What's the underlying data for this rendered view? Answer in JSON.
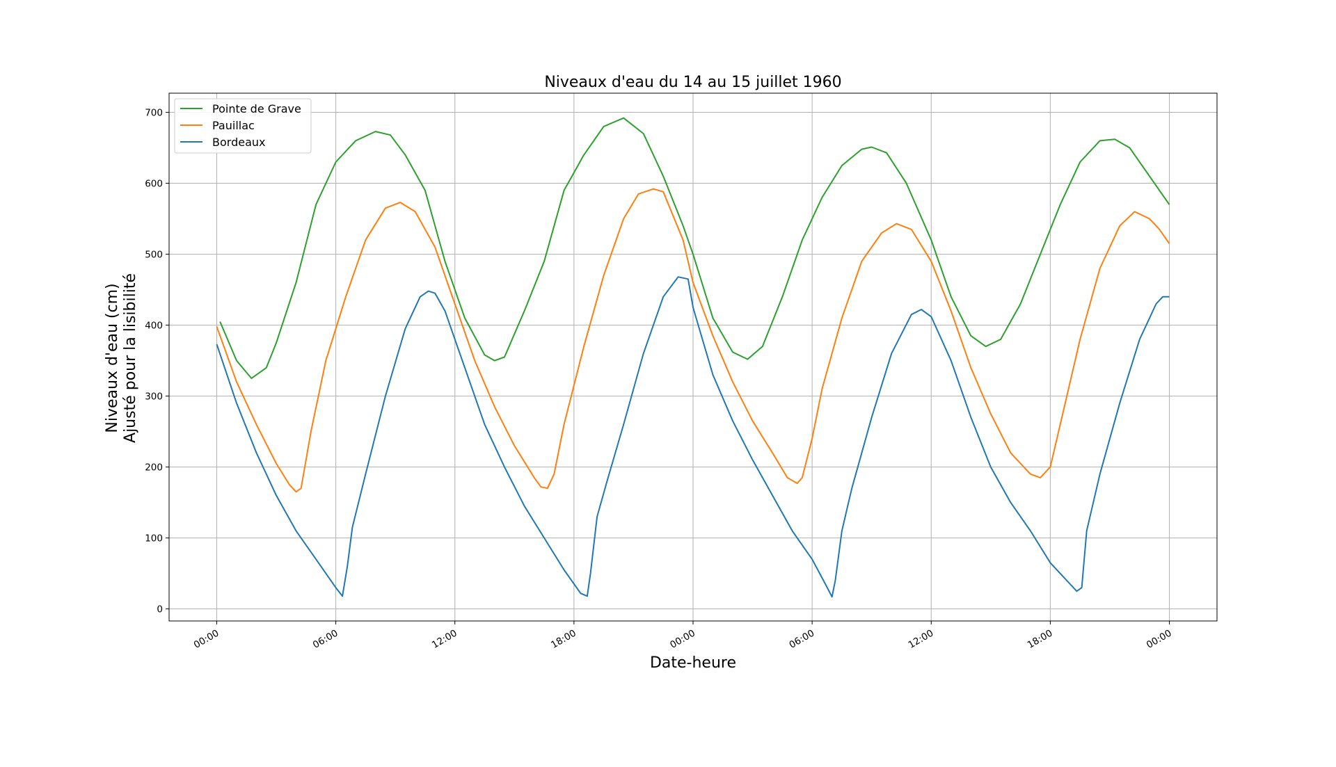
{
  "chart_data": {
    "type": "line",
    "title": "Niveaux d'eau du 14 au 15 juillet 1960",
    "xlabel": "Date-heure",
    "ylabel_lines": [
      "Niveaux d'eau (cm)",
      "Ajusté pour la lisibilité"
    ],
    "x_ticks": [
      {
        "t": "1960-07-14 00:00",
        "label": "00:00"
      },
      {
        "t": "1960-07-14 06:00",
        "label": "06:00"
      },
      {
        "t": "1960-07-14 12:00",
        "label": "12:00"
      },
      {
        "t": "1960-07-14 18:00",
        "label": "18:00"
      },
      {
        "t": "1960-07-15 00:00",
        "label": "00:00"
      },
      {
        "t": "1960-07-15 06:00",
        "label": "06:00"
      },
      {
        "t": "1960-07-15 12:00",
        "label": "12:00"
      },
      {
        "t": "1960-07-15 18:00",
        "label": "18:00"
      },
      {
        "t": "1960-07-16 00:00",
        "label": "00:00"
      }
    ],
    "xlim": [
      "1960-07-13 21:36",
      "1960-07-16 02:24"
    ],
    "ylim": [
      -17,
      727
    ],
    "y_ticks": [
      0,
      100,
      200,
      300,
      400,
      500,
      600,
      700
    ],
    "grid": true,
    "legend_position": "top-left",
    "series": [
      {
        "name": "Pointe de Grave",
        "color": "#2ca02c",
        "points": [
          [
            "1960-07-14 00:10",
            405
          ],
          [
            "1960-07-14 01:00",
            350
          ],
          [
            "1960-07-14 01:45",
            325
          ],
          [
            "1960-07-14 02:30",
            340
          ],
          [
            "1960-07-14 03:00",
            375
          ],
          [
            "1960-07-14 04:00",
            460
          ],
          [
            "1960-07-14 05:00",
            570
          ],
          [
            "1960-07-14 06:00",
            630
          ],
          [
            "1960-07-14 07:00",
            660
          ],
          [
            "1960-07-14 08:00",
            673
          ],
          [
            "1960-07-14 08:45",
            668
          ],
          [
            "1960-07-14 09:30",
            640
          ],
          [
            "1960-07-14 10:30",
            590
          ],
          [
            "1960-07-14 11:30",
            490
          ],
          [
            "1960-07-14 12:30",
            410
          ],
          [
            "1960-07-14 13:30",
            358
          ],
          [
            "1960-07-14 14:00",
            350
          ],
          [
            "1960-07-14 14:30",
            355
          ],
          [
            "1960-07-14 15:30",
            420
          ],
          [
            "1960-07-14 16:30",
            490
          ],
          [
            "1960-07-14 17:30",
            590
          ],
          [
            "1960-07-14 18:30",
            640
          ],
          [
            "1960-07-14 19:30",
            680
          ],
          [
            "1960-07-14 20:30",
            692
          ],
          [
            "1960-07-14 21:30",
            670
          ],
          [
            "1960-07-14 22:30",
            610
          ],
          [
            "1960-07-14 23:30",
            540
          ],
          [
            "1960-07-15 00:00",
            500
          ],
          [
            "1960-07-15 01:00",
            410
          ],
          [
            "1960-07-15 02:00",
            362
          ],
          [
            "1960-07-15 02:45",
            352
          ],
          [
            "1960-07-15 03:30",
            370
          ],
          [
            "1960-07-15 04:30",
            440
          ],
          [
            "1960-07-15 05:30",
            520
          ],
          [
            "1960-07-15 06:30",
            580
          ],
          [
            "1960-07-15 07:30",
            625
          ],
          [
            "1960-07-15 08:30",
            648
          ],
          [
            "1960-07-15 09:00",
            651
          ],
          [
            "1960-07-15 09:45",
            643
          ],
          [
            "1960-07-15 10:45",
            600
          ],
          [
            "1960-07-15 12:00",
            520
          ],
          [
            "1960-07-15 13:00",
            440
          ],
          [
            "1960-07-15 14:00",
            385
          ],
          [
            "1960-07-15 14:45",
            370
          ],
          [
            "1960-07-15 15:30",
            380
          ],
          [
            "1960-07-15 16:30",
            430
          ],
          [
            "1960-07-15 17:30",
            500
          ],
          [
            "1960-07-15 18:30",
            570
          ],
          [
            "1960-07-15 19:30",
            630
          ],
          [
            "1960-07-15 20:30",
            660
          ],
          [
            "1960-07-15 21:15",
            662
          ],
          [
            "1960-07-15 22:00",
            650
          ],
          [
            "1960-07-15 23:00",
            610
          ],
          [
            "1960-07-16 00:00",
            570
          ]
        ]
      },
      {
        "name": "Pauillac",
        "color": "#ff7f0e",
        "points": [
          [
            "1960-07-14 00:00",
            398
          ],
          [
            "1960-07-14 01:00",
            320
          ],
          [
            "1960-07-14 02:00",
            260
          ],
          [
            "1960-07-14 03:00",
            205
          ],
          [
            "1960-07-14 03:40",
            175
          ],
          [
            "1960-07-14 04:00",
            165
          ],
          [
            "1960-07-14 04:15",
            170
          ],
          [
            "1960-07-14 04:45",
            250
          ],
          [
            "1960-07-14 05:30",
            350
          ],
          [
            "1960-07-14 06:30",
            440
          ],
          [
            "1960-07-14 07:30",
            520
          ],
          [
            "1960-07-14 08:30",
            565
          ],
          [
            "1960-07-14 09:15",
            573
          ],
          [
            "1960-07-14 10:00",
            560
          ],
          [
            "1960-07-14 11:00",
            510
          ],
          [
            "1960-07-14 12:00",
            430
          ],
          [
            "1960-07-14 13:00",
            350
          ],
          [
            "1960-07-14 14:00",
            285
          ],
          [
            "1960-07-14 15:00",
            230
          ],
          [
            "1960-07-14 16:00",
            185
          ],
          [
            "1960-07-14 16:20",
            172
          ],
          [
            "1960-07-14 16:40",
            170
          ],
          [
            "1960-07-14 17:00",
            190
          ],
          [
            "1960-07-14 17:30",
            260
          ],
          [
            "1960-07-14 18:30",
            370
          ],
          [
            "1960-07-14 19:30",
            470
          ],
          [
            "1960-07-14 20:30",
            550
          ],
          [
            "1960-07-14 21:15",
            585
          ],
          [
            "1960-07-14 22:00",
            592
          ],
          [
            "1960-07-14 22:30",
            588
          ],
          [
            "1960-07-14 23:30",
            520
          ],
          [
            "1960-07-15 00:00",
            460
          ],
          [
            "1960-07-15 01:00",
            385
          ],
          [
            "1960-07-15 02:00",
            320
          ],
          [
            "1960-07-15 03:00",
            265
          ],
          [
            "1960-07-15 04:00",
            220
          ],
          [
            "1960-07-15 04:45",
            185
          ],
          [
            "1960-07-15 05:15",
            177
          ],
          [
            "1960-07-15 05:30",
            185
          ],
          [
            "1960-07-15 06:00",
            240
          ],
          [
            "1960-07-15 06:30",
            310
          ],
          [
            "1960-07-15 07:30",
            410
          ],
          [
            "1960-07-15 08:30",
            490
          ],
          [
            "1960-07-15 09:30",
            530
          ],
          [
            "1960-07-15 10:15",
            543
          ],
          [
            "1960-07-15 11:00",
            535
          ],
          [
            "1960-07-15 12:00",
            490
          ],
          [
            "1960-07-15 13:00",
            420
          ],
          [
            "1960-07-15 14:00",
            340
          ],
          [
            "1960-07-15 15:00",
            275
          ],
          [
            "1960-07-15 16:00",
            220
          ],
          [
            "1960-07-15 17:00",
            190
          ],
          [
            "1960-07-15 17:30",
            185
          ],
          [
            "1960-07-15 18:00",
            200
          ],
          [
            "1960-07-15 18:30",
            260
          ],
          [
            "1960-07-15 19:30",
            380
          ],
          [
            "1960-07-15 20:30",
            480
          ],
          [
            "1960-07-15 21:30",
            540
          ],
          [
            "1960-07-15 22:15",
            560
          ],
          [
            "1960-07-15 23:00",
            550
          ],
          [
            "1960-07-15 23:30",
            535
          ],
          [
            "1960-07-16 00:00",
            515
          ]
        ]
      },
      {
        "name": "Bordeaux",
        "color": "#1f77b4",
        "points": [
          [
            "1960-07-14 00:00",
            373
          ],
          [
            "1960-07-14 01:00",
            290
          ],
          [
            "1960-07-14 02:00",
            220
          ],
          [
            "1960-07-14 03:00",
            160
          ],
          [
            "1960-07-14 04:00",
            110
          ],
          [
            "1960-07-14 05:00",
            70
          ],
          [
            "1960-07-14 06:00",
            30
          ],
          [
            "1960-07-14 06:20",
            18
          ],
          [
            "1960-07-14 06:35",
            60
          ],
          [
            "1960-07-14 06:50",
            115
          ],
          [
            "1960-07-14 07:30",
            190
          ],
          [
            "1960-07-14 08:30",
            300
          ],
          [
            "1960-07-14 09:30",
            395
          ],
          [
            "1960-07-14 10:15",
            440
          ],
          [
            "1960-07-14 10:40",
            448
          ],
          [
            "1960-07-14 11:00",
            445
          ],
          [
            "1960-07-14 11:30",
            420
          ],
          [
            "1960-07-14 12:30",
            340
          ],
          [
            "1960-07-14 13:30",
            260
          ],
          [
            "1960-07-14 14:30",
            200
          ],
          [
            "1960-07-14 15:30",
            145
          ],
          [
            "1960-07-14 16:30",
            100
          ],
          [
            "1960-07-14 17:30",
            55
          ],
          [
            "1960-07-14 18:20",
            22
          ],
          [
            "1960-07-14 18:40",
            18
          ],
          [
            "1960-07-14 18:50",
            50
          ],
          [
            "1960-07-14 19:10",
            130
          ],
          [
            "1960-07-14 19:40",
            180
          ],
          [
            "1960-07-14 20:30",
            260
          ],
          [
            "1960-07-14 21:30",
            360
          ],
          [
            "1960-07-14 22:30",
            440
          ],
          [
            "1960-07-14 23:15",
            468
          ],
          [
            "1960-07-14 23:45",
            465
          ],
          [
            "1960-07-15 00:00",
            425
          ],
          [
            "1960-07-15 01:00",
            330
          ],
          [
            "1960-07-15 02:00",
            265
          ],
          [
            "1960-07-15 03:00",
            210
          ],
          [
            "1960-07-15 04:00",
            160
          ],
          [
            "1960-07-15 05:00",
            110
          ],
          [
            "1960-07-15 06:00",
            70
          ],
          [
            "1960-07-15 06:40",
            35
          ],
          [
            "1960-07-15 07:00",
            17
          ],
          [
            "1960-07-15 07:10",
            40
          ],
          [
            "1960-07-15 07:30",
            110
          ],
          [
            "1960-07-15 08:00",
            170
          ],
          [
            "1960-07-15 09:00",
            270
          ],
          [
            "1960-07-15 10:00",
            360
          ],
          [
            "1960-07-15 11:00",
            415
          ],
          [
            "1960-07-15 11:30",
            422
          ],
          [
            "1960-07-15 12:00",
            412
          ],
          [
            "1960-07-15 13:00",
            350
          ],
          [
            "1960-07-15 14:00",
            270
          ],
          [
            "1960-07-15 15:00",
            200
          ],
          [
            "1960-07-15 16:00",
            150
          ],
          [
            "1960-07-15 17:00",
            110
          ],
          [
            "1960-07-15 18:00",
            65
          ],
          [
            "1960-07-15 19:00",
            35
          ],
          [
            "1960-07-15 19:20",
            25
          ],
          [
            "1960-07-15 19:35",
            30
          ],
          [
            "1960-07-15 19:50",
            110
          ],
          [
            "1960-07-15 20:30",
            190
          ],
          [
            "1960-07-15 21:30",
            290
          ],
          [
            "1960-07-15 22:30",
            380
          ],
          [
            "1960-07-15 23:20",
            430
          ],
          [
            "1960-07-15 23:40",
            440
          ],
          [
            "1960-07-16 00:00",
            440
          ]
        ]
      }
    ]
  }
}
